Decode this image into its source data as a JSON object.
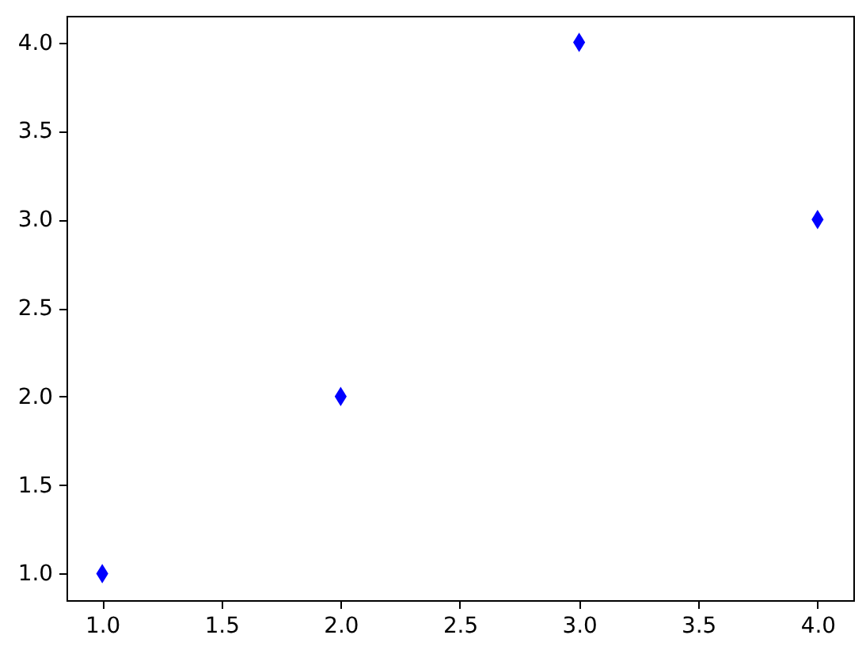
{
  "chart_data": {
    "type": "scatter",
    "x": [
      1,
      2,
      3,
      4
    ],
    "values": [
      1,
      2,
      4,
      3
    ],
    "color": "#0000ff",
    "marker": "diamond",
    "xlim": [
      0.85,
      4.15
    ],
    "ylim": [
      0.85,
      4.15
    ],
    "xticks": [
      {
        "value": 1,
        "label": "1.0"
      },
      1.5,
      {
        "value": 2,
        "label": "2.0"
      },
      2.5,
      {
        "value": 3,
        "label": "3.0"
      },
      3.5,
      {
        "value": 4,
        "label": "4.0"
      }
    ],
    "yticks": [
      {
        "value": 1,
        "label": "1.0"
      },
      1.5,
      {
        "value": 2,
        "label": "2.0"
      },
      2.5,
      {
        "value": 3,
        "label": "3.0"
      },
      3.5,
      {
        "value": 4,
        "label": "4.0"
      }
    ],
    "grid": false
  }
}
